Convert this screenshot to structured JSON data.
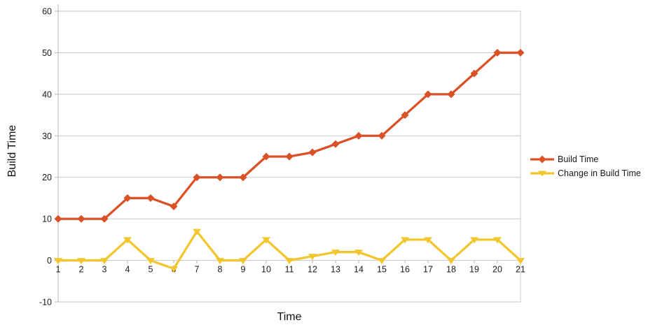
{
  "chart_data": {
    "type": "line",
    "title": "",
    "xlabel": "Time",
    "ylabel": "Build Time",
    "categories": [
      "1",
      "2",
      "3",
      "4",
      "5",
      "6",
      "7",
      "8",
      "9",
      "10",
      "11",
      "12",
      "13",
      "14",
      "15",
      "16",
      "17",
      "18",
      "19",
      "20",
      "21"
    ],
    "ylim": [
      -10,
      60
    ],
    "ytick_step": 10,
    "grid": true,
    "legend_position": "right",
    "series": [
      {
        "name": "Build Time",
        "color": "#DB5127",
        "marker": "diamond",
        "values": [
          10,
          10,
          10,
          15,
          15,
          13,
          20,
          20,
          20,
          25,
          25,
          26,
          28,
          30,
          30,
          35,
          40,
          40,
          45,
          50,
          50
        ]
      },
      {
        "name": "Change in Build Time",
        "color": "#F2C62F",
        "marker": "triangle-down",
        "values": [
          0,
          0,
          0,
          5,
          0,
          -2,
          7,
          0,
          0,
          5,
          0,
          1,
          2,
          2,
          0,
          5,
          5,
          0,
          5,
          5,
          0
        ]
      }
    ],
    "style": {
      "grid_color": "#C9C9C9",
      "axis_color": "#B3B3B3",
      "text_color": "#1A1A1A",
      "background": "#FFFFFF"
    }
  }
}
